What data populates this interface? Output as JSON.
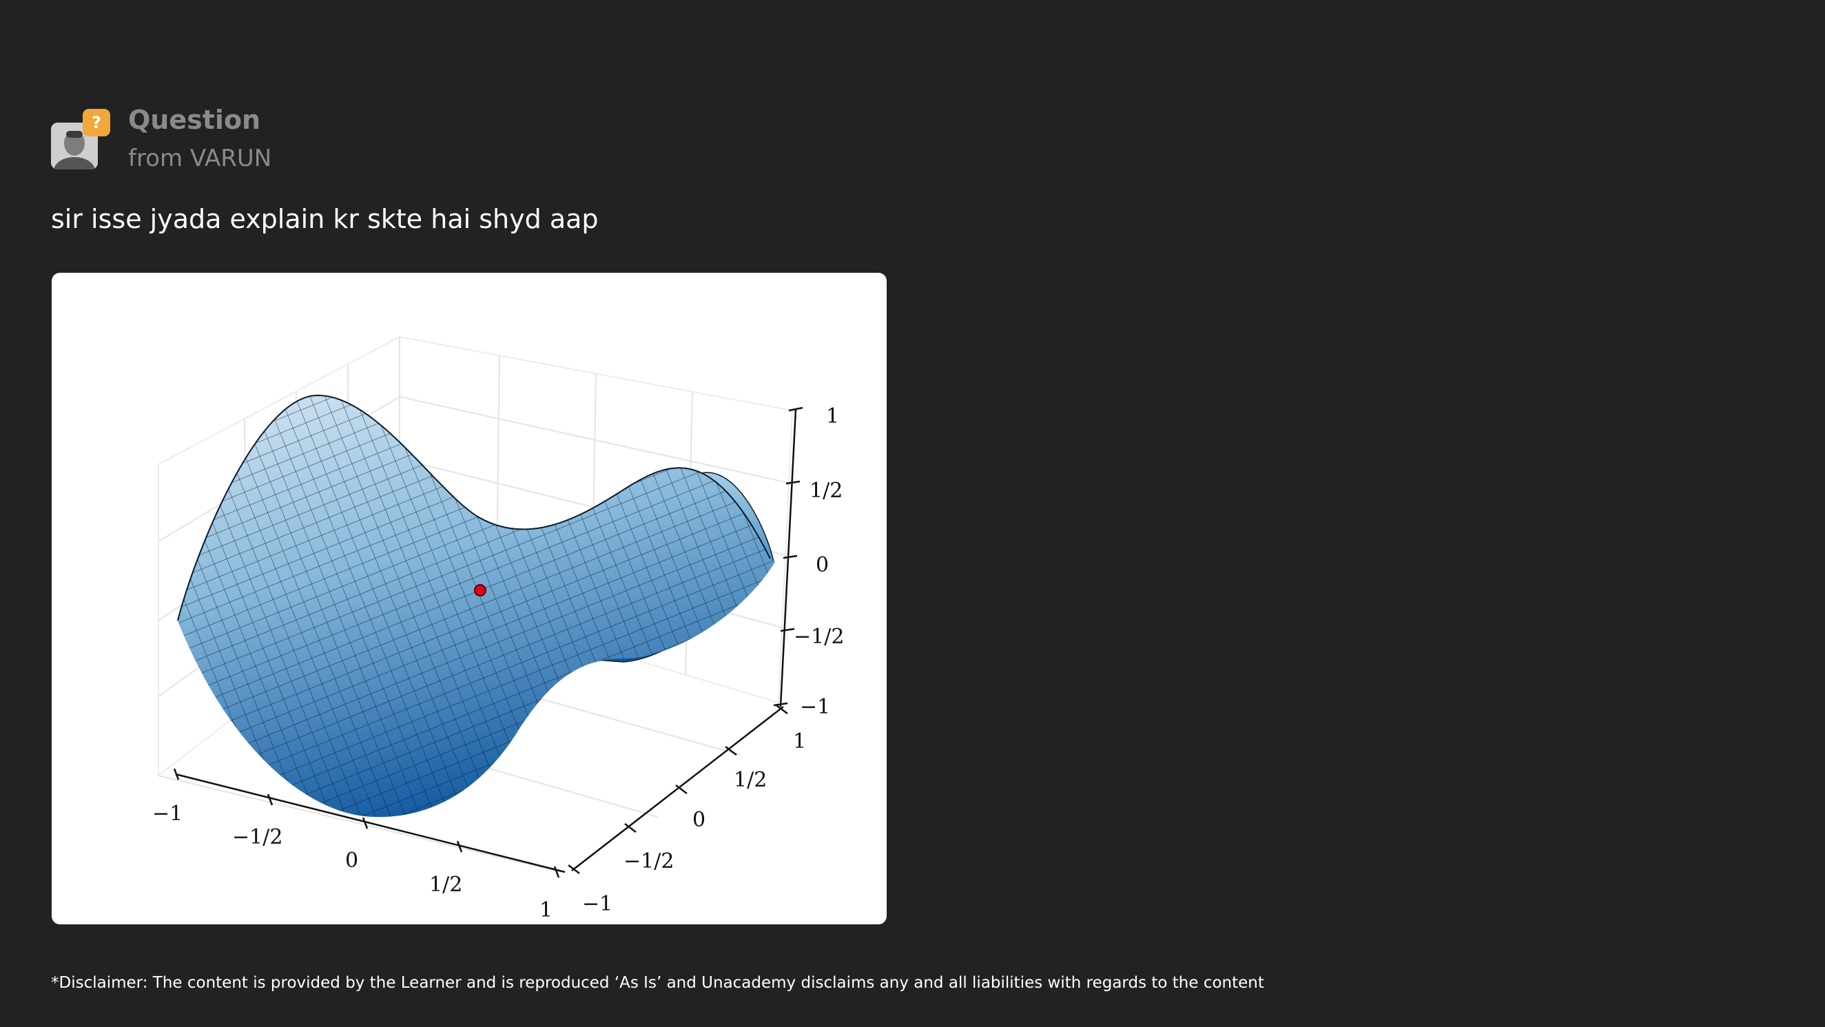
{
  "question": {
    "title": "Question",
    "from": "from VARUN",
    "badge_glyph": "?",
    "text": "sir isse jyada explain kr skte hai shyd aap"
  },
  "plot": {
    "z_ticks": [
      "1",
      "1/2",
      "0",
      "−1/2",
      "−1"
    ],
    "x_ticks": [
      "−1",
      "−1/2",
      "0",
      "1/2",
      "1"
    ],
    "y_ticks": [
      "1",
      "1/2",
      "0",
      "−1/2",
      "−1"
    ]
  },
  "disclaimer": "*Disclaimer: The content is provided by the Learner and is reproduced ‘As Is’ and Unacademy disclaims any and all liabilities with regards to the content",
  "colors": {
    "background": "#212224",
    "badge": "#f0a83a",
    "surface_light": "#deebf7",
    "surface_dark": "#08519c",
    "saddle_point": "#e0001a"
  },
  "icons": {
    "avatar": "user-avatar",
    "badge": "question-badge-icon"
  }
}
